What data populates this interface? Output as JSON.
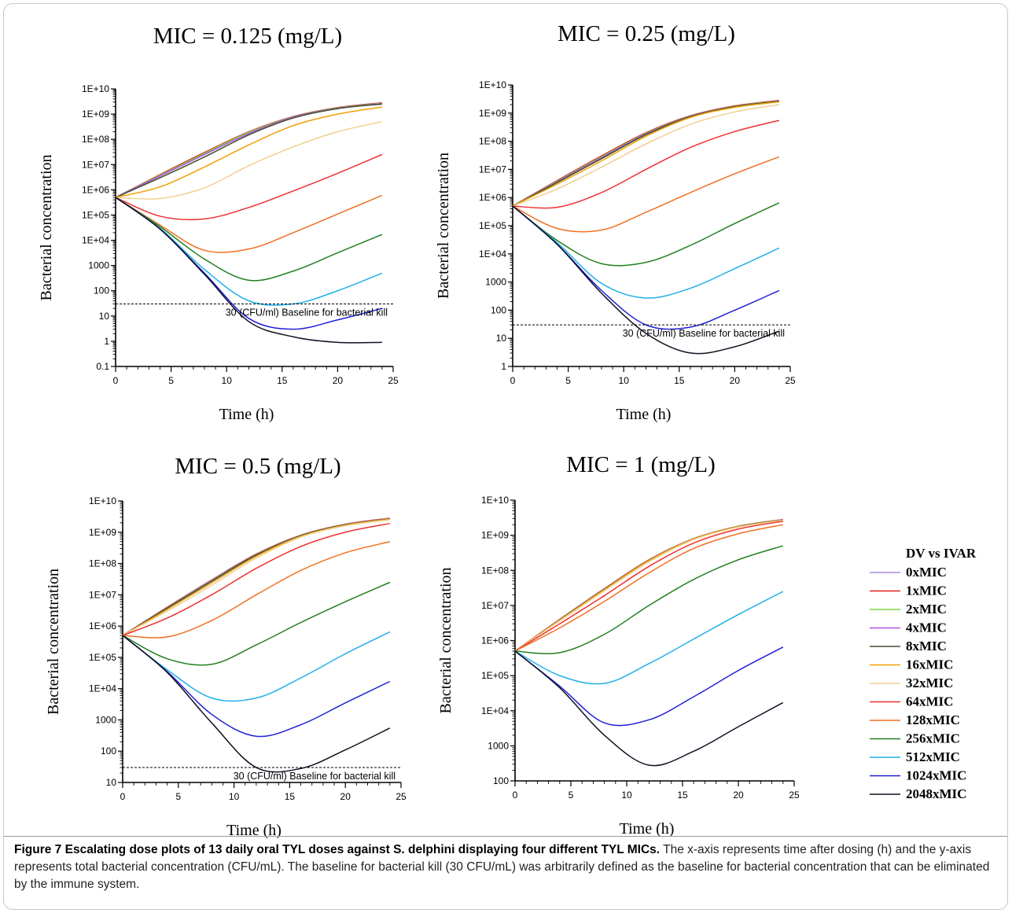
{
  "figure": {
    "caption_label": "Figure 7",
    "caption_title": "Escalating dose plots of 13 daily oral TYL doses against S. delphini displaying four different TYL MICs.",
    "caption_body": "The x-axis represents time after dosing (h) and the y-axis represents total bacterial concentration (CFU/mL). The baseline for bacterial kill (30 CFU/mL) was arbitrarily defined as the baseline for bacterial concentration that can be eliminated by the immune system."
  },
  "legend": {
    "title": "DV vs IVAR",
    "items": [
      {
        "label": "0xMIC",
        "color": "#a98be0"
      },
      {
        "label": "1xMIC",
        "color": "#e02020"
      },
      {
        "label": "2xMIC",
        "color": "#80d040"
      },
      {
        "label": "4xMIC",
        "color": "#b050e0"
      },
      {
        "label": "8xMIC",
        "color": "#405030"
      },
      {
        "label": "16xMIC",
        "color": "#f0a000"
      },
      {
        "label": "32xMIC",
        "color": "#f0d090"
      },
      {
        "label": "64xMIC",
        "color": "#f03030"
      },
      {
        "label": "128xMIC",
        "color": "#f07020"
      },
      {
        "label": "256xMIC",
        "color": "#208020"
      },
      {
        "label": "512xMIC",
        "color": "#20b0e8"
      },
      {
        "label": "1024xMIC",
        "color": "#2020d8"
      },
      {
        "label": "2048xMIC",
        "color": "#101020"
      }
    ]
  },
  "chart_data": [
    {
      "type": "line",
      "title": "MIC = 0.125 (mg/L)",
      "xlabel": "Time (h)",
      "ylabel": "Bacterial concentration",
      "xlim": [
        0,
        25
      ],
      "ylim": [
        0.1,
        10000000000
      ],
      "yscale": "log",
      "xticks": [
        "0",
        "5",
        "10",
        "15",
        "20",
        "25"
      ],
      "yticks": [
        "0.1",
        "1",
        "10",
        "100",
        "1000",
        "1E+04",
        "1E+05",
        "1E+06",
        "1E+07",
        "1E+08",
        "1E+09",
        "1E+10"
      ],
      "baseline": {
        "y": 30,
        "label": "30 (CFU/ml) Baseline for bacterial kill"
      },
      "x": [
        0,
        4,
        8,
        12,
        16,
        20,
        24
      ],
      "series": [
        {
          "name": "0xMIC",
          "values": [
            500000,
            4000000,
            30000000,
            200000000,
            800000000,
            1800000000,
            2800000000
          ]
        },
        {
          "name": "1xMIC",
          "values": [
            500000,
            4000000,
            30000000,
            200000000,
            800000000,
            1800000000,
            2800000000
          ]
        },
        {
          "name": "2xMIC",
          "values": [
            500000,
            3800000,
            28000000,
            190000000,
            780000000,
            1750000000,
            2700000000
          ]
        },
        {
          "name": "4xMIC",
          "values": [
            500000,
            3500000,
            25000000,
            170000000,
            750000000,
            1700000000,
            2600000000
          ]
        },
        {
          "name": "8xMIC",
          "values": [
            500000,
            3000000,
            20000000,
            150000000,
            700000000,
            1650000000,
            2500000000
          ]
        },
        {
          "name": "16xMIC",
          "values": [
            500000,
            1300000,
            8000000,
            60000000,
            350000000,
            1000000000,
            1900000000
          ]
        },
        {
          "name": "32xMIC",
          "values": [
            500000,
            450000,
            1200000,
            9000000,
            50000000,
            200000000,
            500000000
          ]
        },
        {
          "name": "64xMIC",
          "values": [
            500000,
            90000,
            70000,
            200000,
            900000,
            4500000,
            25000000
          ]
        },
        {
          "name": "128xMIC",
          "values": [
            500000,
            40000,
            4000,
            4500,
            20000,
            110000,
            600000
          ]
        },
        {
          "name": "256xMIC",
          "values": [
            500000,
            35000,
            1800,
            260,
            600,
            3200,
            17000
          ]
        },
        {
          "name": "512xMIC",
          "values": [
            500000,
            30000,
            700,
            40,
            30,
            100,
            500
          ]
        },
        {
          "name": "1024xMIC",
          "values": [
            500000,
            28000,
            500,
            8,
            3,
            7,
            20
          ]
        },
        {
          "name": "2048xMIC",
          "values": [
            500000,
            28000,
            450,
            6,
            1.5,
            0.9,
            0.9
          ]
        }
      ]
    },
    {
      "type": "line",
      "title": "MIC = 0.25 (mg/L)",
      "xlabel": "Time (h)",
      "ylabel": "Bacterial concentration",
      "xlim": [
        0,
        25
      ],
      "ylim": [
        1,
        10000000000
      ],
      "yscale": "log",
      "xticks": [
        "0",
        "5",
        "10",
        "15",
        "20",
        "25"
      ],
      "yticks": [
        "1",
        "10",
        "100",
        "1000",
        "1E+04",
        "1E+05",
        "1E+06",
        "1E+07",
        "1E+08",
        "1E+09",
        "1E+10"
      ],
      "baseline": {
        "y": 30,
        "label": "30 (CFU/ml) Baseline for bacterial kill"
      },
      "x": [
        0,
        4,
        8,
        12,
        16,
        20,
        24
      ],
      "series": [
        {
          "name": "0xMIC",
          "values": [
            500000,
            4000000,
            30000000,
            200000000,
            800000000,
            1800000000,
            2800000000
          ]
        },
        {
          "name": "1xMIC",
          "values": [
            500000,
            4000000,
            30000000,
            200000000,
            800000000,
            1800000000,
            2800000000
          ]
        },
        {
          "name": "2xMIC",
          "values": [
            500000,
            3800000,
            28000000,
            190000000,
            780000000,
            1750000000,
            2700000000
          ]
        },
        {
          "name": "4xMIC",
          "values": [
            500000,
            3600000,
            26000000,
            180000000,
            760000000,
            1700000000,
            2650000000
          ]
        },
        {
          "name": "8xMIC",
          "values": [
            500000,
            3400000,
            24000000,
            170000000,
            740000000,
            1680000000,
            2600000000
          ]
        },
        {
          "name": "16xMIC",
          "values": [
            500000,
            3000000,
            20000000,
            150000000,
            700000000,
            1600000000,
            2500000000
          ]
        },
        {
          "name": "32xMIC",
          "values": [
            500000,
            2000000,
            12000000,
            80000000,
            400000000,
            1100000000,
            2000000000
          ]
        },
        {
          "name": "64xMIC",
          "values": [
            500000,
            450000,
            1500000,
            10000000,
            60000000,
            220000000,
            550000000
          ]
        },
        {
          "name": "128xMIC",
          "values": [
            500000,
            80000,
            70000,
            300000,
            1500000,
            7000000,
            28000000
          ]
        },
        {
          "name": "256xMIC",
          "values": [
            500000,
            30000,
            4500,
            5000,
            20000,
            120000,
            650000
          ]
        },
        {
          "name": "512xMIC",
          "values": [
            500000,
            25000,
            900,
            270,
            600,
            3000,
            16000
          ]
        },
        {
          "name": "1024xMIC",
          "values": [
            500000,
            22000,
            500,
            30,
            25,
            100,
            500
          ]
        },
        {
          "name": "2048xMIC",
          "values": [
            500000,
            22000,
            400,
            15,
            3,
            5,
            18
          ]
        }
      ]
    },
    {
      "type": "line",
      "title": "MIC = 0.5 (mg/L)",
      "xlabel": "Time (h)",
      "ylabel": "Bacterial concentration",
      "xlim": [
        0,
        25
      ],
      "ylim": [
        10,
        10000000000
      ],
      "yscale": "log",
      "xticks": [
        "0",
        "5",
        "10",
        "15",
        "20",
        "25"
      ],
      "yticks": [
        "10",
        "100",
        "1000",
        "1E+04",
        "1E+05",
        "1E+06",
        "1E+07",
        "1E+08",
        "1E+09",
        "1E+10"
      ],
      "baseline": {
        "y": 30,
        "label": "30 (CFU/ml) Baseline for bacterial kill"
      },
      "x": [
        0,
        4,
        8,
        12,
        16,
        20,
        24
      ],
      "series": [
        {
          "name": "0xMIC",
          "values": [
            500000,
            4000000,
            30000000,
            200000000,
            800000000,
            1800000000,
            2800000000
          ]
        },
        {
          "name": "1xMIC",
          "values": [
            500000,
            4000000,
            30000000,
            200000000,
            800000000,
            1800000000,
            2800000000
          ]
        },
        {
          "name": "2xMIC",
          "values": [
            500000,
            3900000,
            29000000,
            195000000,
            790000000,
            1780000000,
            2750000000
          ]
        },
        {
          "name": "4xMIC",
          "values": [
            500000,
            3800000,
            28000000,
            190000000,
            780000000,
            1750000000,
            2700000000
          ]
        },
        {
          "name": "8xMIC",
          "values": [
            500000,
            3700000,
            27000000,
            185000000,
            770000000,
            1720000000,
            2650000000
          ]
        },
        {
          "name": "16xMIC",
          "values": [
            500000,
            3400000,
            24000000,
            170000000,
            740000000,
            1680000000,
            2600000000
          ]
        },
        {
          "name": "32xMIC",
          "values": [
            500000,
            3000000,
            20000000,
            150000000,
            700000000,
            1600000000,
            2500000000
          ]
        },
        {
          "name": "64xMIC",
          "values": [
            500000,
            1800000,
            10000000,
            70000000,
            350000000,
            1000000000,
            1900000000
          ]
        },
        {
          "name": "128xMIC",
          "values": [
            500000,
            450000,
            1500000,
            10000000,
            60000000,
            220000000,
            500000000
          ]
        },
        {
          "name": "256xMIC",
          "values": [
            500000,
            90000,
            60000,
            250000,
            1300000,
            6000000,
            25000000
          ]
        },
        {
          "name": "512xMIC",
          "values": [
            500000,
            40000,
            5000,
            5000,
            22000,
            130000,
            650000
          ]
        },
        {
          "name": "1024xMIC",
          "values": [
            500000,
            35000,
            1500,
            300,
            700,
            3500,
            17000
          ]
        },
        {
          "name": "2048xMIC",
          "values": [
            500000,
            33000,
            800,
            30,
            28,
            110,
            550
          ]
        }
      ]
    },
    {
      "type": "line",
      "title": "MIC = 1 (mg/L)",
      "xlabel": "Time (h)",
      "ylabel": "Bacterial concentration",
      "xlim": [
        0,
        25
      ],
      "ylim": [
        100,
        10000000000
      ],
      "yscale": "log",
      "xticks": [
        "0",
        "5",
        "10",
        "15",
        "20",
        "25"
      ],
      "yticks": [
        "100",
        "1000",
        "1E+04",
        "1E+05",
        "1E+06",
        "1E+07",
        "1E+08",
        "1E+09",
        "1E+10"
      ],
      "x": [
        0,
        4,
        8,
        12,
        16,
        20,
        24
      ],
      "series": [
        {
          "name": "0xMIC",
          "values": [
            500000,
            4000000,
            30000000,
            200000000,
            800000000,
            1800000000,
            2800000000
          ]
        },
        {
          "name": "1xMIC",
          "values": [
            500000,
            4000000,
            30000000,
            200000000,
            800000000,
            1800000000,
            2800000000
          ]
        },
        {
          "name": "2xMIC",
          "values": [
            500000,
            3950000,
            29500000,
            198000000,
            795000000,
            1790000000,
            2780000000
          ]
        },
        {
          "name": "4xMIC",
          "values": [
            500000,
            3900000,
            29000000,
            195000000,
            790000000,
            1780000000,
            2750000000
          ]
        },
        {
          "name": "8xMIC",
          "values": [
            500000,
            3850000,
            28500000,
            192000000,
            785000000,
            1770000000,
            2720000000
          ]
        },
        {
          "name": "16xMIC",
          "values": [
            500000,
            3800000,
            28000000,
            190000000,
            780000000,
            1750000000,
            2700000000
          ]
        },
        {
          "name": "32xMIC",
          "values": [
            500000,
            3600000,
            26000000,
            175000000,
            750000000,
            1700000000,
            2650000000
          ]
        },
        {
          "name": "64xMIC",
          "values": [
            500000,
            3000000,
            19000000,
            130000000,
            600000000,
            1500000000,
            2500000000
          ]
        },
        {
          "name": "128xMIC",
          "values": [
            500000,
            2300000,
            13000000,
            85000000,
            420000000,
            1100000000,
            2000000000
          ]
        },
        {
          "name": "256xMIC",
          "values": [
            500000,
            450000,
            1500000,
            10000000,
            55000000,
            200000000,
            500000000
          ]
        },
        {
          "name": "512xMIC",
          "values": [
            500000,
            100000,
            60000,
            220000,
            1100000,
            5500000,
            25000000
          ]
        },
        {
          "name": "1024xMIC",
          "values": [
            500000,
            50000,
            4500,
            5500,
            25000,
            140000,
            650000
          ]
        },
        {
          "name": "2048xMIC",
          "values": [
            500000,
            45000,
            2000,
            280,
            700,
            3500,
            17000
          ]
        }
      ]
    }
  ]
}
